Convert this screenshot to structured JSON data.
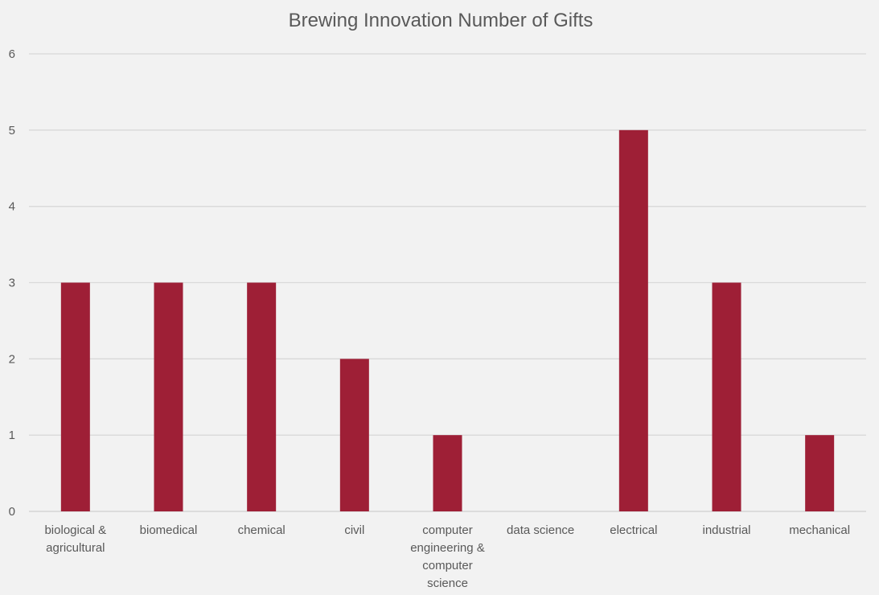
{
  "chart_data": {
    "type": "bar",
    "title": "Brewing Innovation Number of Gifts",
    "xlabel": "",
    "ylabel": "",
    "categories": [
      "biological & agricultural",
      "biomedical",
      "chemical",
      "civil",
      "computer engineering & computer science",
      "data science",
      "electrical",
      "industrial",
      "mechanical"
    ],
    "category_label_lines": [
      [
        "biological &",
        "agricultural"
      ],
      [
        "biomedical"
      ],
      [
        "chemical"
      ],
      [
        "civil"
      ],
      [
        "computer",
        "engineering &",
        "computer",
        "science"
      ],
      [
        "data science"
      ],
      [
        "electrical"
      ],
      [
        "industrial"
      ],
      [
        "mechanical"
      ]
    ],
    "values": [
      3,
      3,
      3,
      2,
      1,
      0,
      5,
      3,
      1
    ],
    "ylim": [
      0,
      6
    ],
    "yticks": [
      0,
      1,
      2,
      3,
      4,
      5,
      6
    ],
    "grid": true,
    "legend": "none",
    "bar_color": "#9e1f36"
  }
}
